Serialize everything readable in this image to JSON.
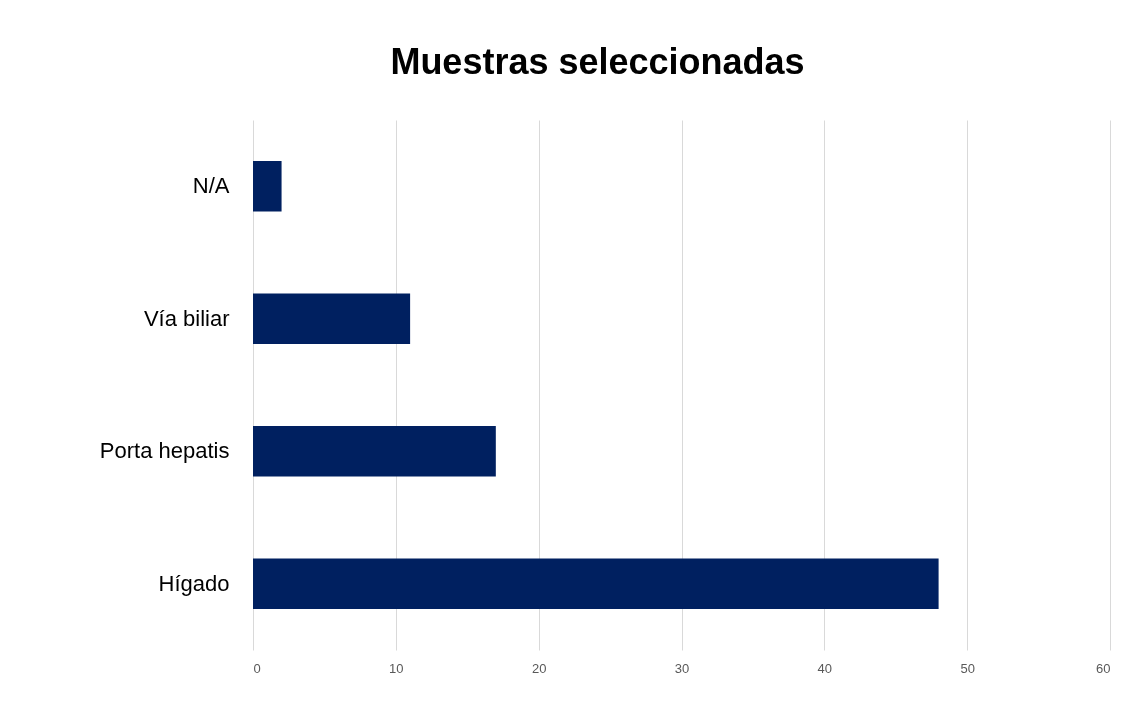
{
  "chart_data": {
    "type": "bar",
    "title": "Muestras seleccionadas",
    "orientation": "horizontal",
    "categories": [
      "N/A",
      "Vía biliar",
      "Porta hepatis",
      "Hígado"
    ],
    "values": [
      2,
      11,
      17,
      48
    ],
    "color": "#002060",
    "xlim": [
      0,
      60
    ],
    "xticks": [
      0,
      10,
      20,
      30,
      40,
      50,
      60
    ],
    "grid": "x"
  }
}
